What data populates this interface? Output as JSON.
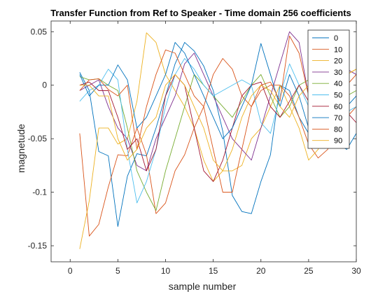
{
  "chart_data": {
    "type": "line",
    "title": "Transfer Function from Ref to Speaker - Time domain 256 coefficients",
    "xlabel": "sample number",
    "ylabel": "magnetude",
    "xlim": [
      -2,
      30
    ],
    "ylim": [
      -0.165,
      0.06
    ],
    "xticks": [
      0,
      5,
      10,
      15,
      20,
      25,
      30
    ],
    "xtick_labels": [
      "0",
      "5",
      "10",
      "15",
      "20",
      "25",
      "30"
    ],
    "yticks": [
      0.05,
      0,
      -0.05,
      -0.1,
      -0.15
    ],
    "ytick_labels": [
      "0.05",
      "0",
      "-0.05",
      "-0.1",
      "-0.15"
    ],
    "grid": false,
    "legend_position": "top-right",
    "x": [
      1,
      2,
      3,
      4,
      5,
      6,
      7,
      8,
      9,
      10,
      11,
      12,
      13,
      14,
      15,
      16,
      17,
      18,
      19,
      20,
      21,
      22,
      23,
      24,
      25,
      26,
      27,
      28,
      29,
      30
    ],
    "series": [
      {
        "name": "0",
        "color": "#0072bd",
        "values": [
          0.012,
          -0.005,
          -0.062,
          -0.066,
          -0.132,
          -0.085,
          -0.064,
          -0.066,
          -0.04,
          -0.01,
          0.02,
          0.04,
          0.032,
          0.018,
          -0.005,
          -0.043,
          -0.103,
          -0.118,
          -0.12,
          -0.09,
          -0.065,
          0.0,
          -0.005,
          -0.03,
          -0.045,
          -0.04,
          -0.05,
          -0.055,
          -0.06,
          -0.045
        ]
      },
      {
        "name": "10",
        "color": "#d95319",
        "values": [
          -0.045,
          -0.141,
          -0.13,
          -0.095,
          -0.065,
          -0.066,
          -0.04,
          -0.065,
          -0.12,
          -0.11,
          -0.08,
          -0.065,
          -0.04,
          -0.02,
          0.01,
          0.025,
          0.015,
          -0.01,
          -0.02,
          -0.005,
          0.0,
          0.0,
          -0.01,
          -0.03,
          -0.055,
          -0.068,
          -0.06,
          -0.04,
          -0.03,
          -0.02
        ]
      },
      {
        "name": "20",
        "color": "#edb120",
        "values": [
          -0.153,
          -0.108,
          -0.04,
          -0.04,
          -0.055,
          -0.05,
          -0.015,
          0.049,
          0.04,
          0.01,
          -0.005,
          -0.02,
          -0.04,
          -0.07,
          -0.09,
          -0.08,
          -0.08,
          -0.075,
          -0.05,
          -0.04,
          -0.02,
          0.0,
          -0.02,
          -0.04,
          -0.07,
          -0.06,
          -0.03,
          0.0,
          0.01,
          0.015
        ]
      },
      {
        "name": "30",
        "color": "#7e2f8e",
        "values": [
          -0.005,
          0.0,
          0.005,
          -0.02,
          -0.04,
          -0.05,
          -0.075,
          -0.08,
          -0.05,
          -0.03,
          -0.01,
          0.02,
          0.03,
          0.01,
          -0.01,
          -0.03,
          -0.05,
          -0.06,
          -0.07,
          -0.04,
          -0.01,
          0.02,
          0.05,
          0.04,
          -0.01,
          -0.03,
          -0.02,
          0.0,
          0.015,
          0.01
        ]
      },
      {
        "name": "40",
        "color": "#77ac30",
        "values": [
          0.008,
          0.005,
          0.006,
          0.0,
          -0.005,
          -0.04,
          -0.08,
          -0.1,
          -0.117,
          -0.08,
          -0.05,
          -0.02,
          0.01,
          0.0,
          -0.01,
          -0.02,
          -0.03,
          -0.015,
          0.0,
          0.01,
          -0.01,
          -0.03,
          -0.02,
          0.0,
          0.005,
          -0.01,
          -0.03,
          -0.02,
          -0.01,
          -0.005
        ]
      },
      {
        "name": "50",
        "color": "#4dbeee",
        "values": [
          -0.015,
          -0.005,
          0.0,
          0.015,
          0.005,
          -0.06,
          -0.11,
          -0.09,
          -0.06,
          -0.02,
          0.01,
          0.025,
          0.015,
          0.0,
          -0.01,
          -0.005,
          0.0,
          0.005,
          0.0,
          -0.035,
          -0.045,
          -0.01,
          0.02,
          0.0,
          -0.02,
          -0.04,
          -0.03,
          -0.02,
          -0.025,
          -0.02
        ]
      },
      {
        "name": "60",
        "color": "#a2142f",
        "values": [
          0.0,
          0.003,
          -0.005,
          -0.005,
          -0.03,
          -0.06,
          -0.05,
          -0.08,
          -0.06,
          -0.01,
          0.01,
          0.0,
          -0.04,
          -0.08,
          -0.09,
          -0.07,
          -0.04,
          -0.01,
          0.0,
          0.003,
          -0.02,
          -0.03,
          -0.015,
          0.0,
          -0.015,
          -0.03,
          -0.02,
          -0.01,
          -0.025,
          -0.035
        ]
      },
      {
        "name": "70",
        "color": "#0072bd",
        "values": [
          0.01,
          -0.01,
          0.0,
          0.0,
          0.019,
          0.005,
          -0.04,
          -0.03,
          -0.01,
          0.01,
          0.04,
          0.03,
          0.01,
          -0.01,
          -0.03,
          -0.05,
          -0.04,
          -0.02,
          0.0,
          0.039,
          0.01,
          -0.02,
          0.01,
          -0.01,
          -0.04,
          -0.03,
          -0.01,
          0.0,
          -0.02,
          -0.01
        ]
      },
      {
        "name": "80",
        "color": "#d95319",
        "values": [
          -0.005,
          0.005,
          0.006,
          -0.004,
          -0.01,
          0.0,
          -0.06,
          -0.02,
          0.01,
          0.033,
          0.03,
          0.01,
          -0.01,
          -0.02,
          -0.06,
          -0.1,
          -0.1,
          -0.06,
          -0.02,
          0.0,
          0.003,
          -0.015,
          0.046,
          0.03,
          -0.01,
          -0.04,
          -0.03,
          -0.01,
          0.0,
          0.01
        ]
      },
      {
        "name": "90",
        "color": "#edb120",
        "values": [
          0.0,
          0.0,
          -0.01,
          -0.01,
          -0.05,
          -0.07,
          -0.06,
          -0.04,
          -0.03,
          0.0,
          0.01,
          0.0,
          -0.02,
          -0.04,
          -0.07,
          -0.08,
          -0.06,
          -0.03,
          -0.01,
          0.0,
          -0.005,
          -0.02,
          -0.03,
          -0.01,
          0.0,
          0.01,
          0.0,
          -0.01,
          0.01,
          0.015
        ]
      }
    ]
  }
}
